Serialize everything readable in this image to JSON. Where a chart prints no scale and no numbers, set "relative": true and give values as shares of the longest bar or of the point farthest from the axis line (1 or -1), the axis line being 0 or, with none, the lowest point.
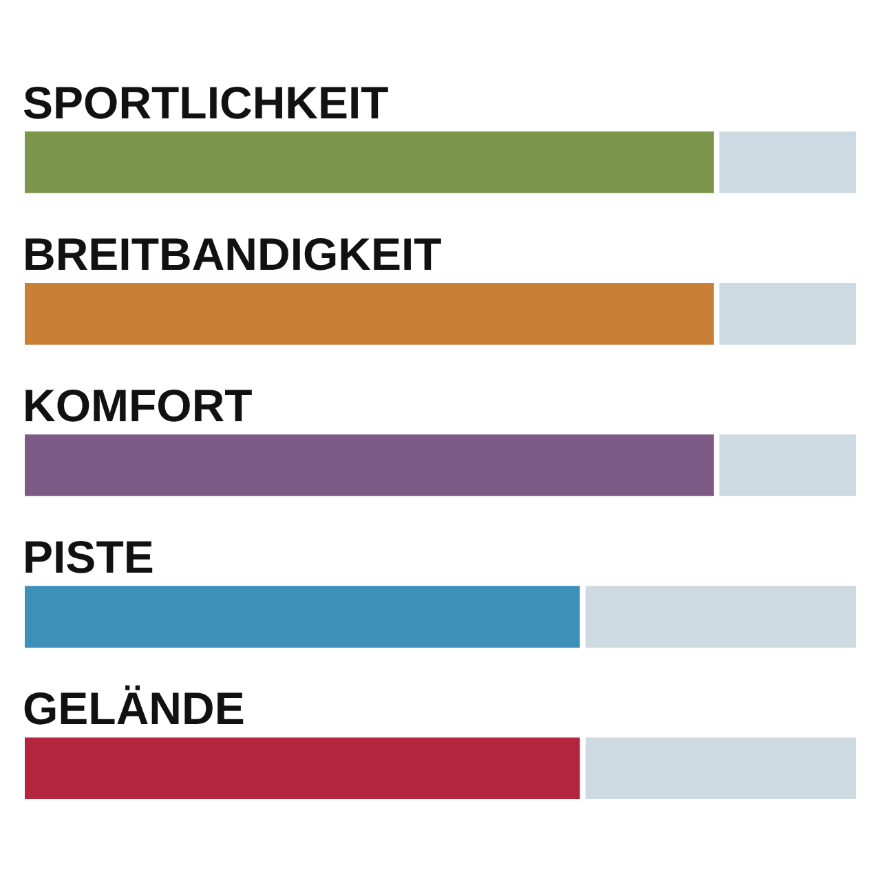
{
  "chart_data": {
    "type": "bar",
    "orientation": "horizontal",
    "stacked": true,
    "relative": true,
    "categories": [
      "SPORTLICHKEIT",
      "BREITBANDIGKEIT",
      "KOMFORT",
      "PISTE",
      "GELÄNDE"
    ],
    "series": [
      {
        "colors": [
          "#7b954c",
          "#c97f36",
          "#7e5b87",
          "#3d91b8",
          "#b3263e"
        ],
        "values": [
          0.83,
          0.83,
          0.83,
          0.67,
          0.67
        ]
      },
      {
        "color": "#cddae2",
        "values": [
          0.17,
          0.17,
          0.17,
          0.33,
          0.33
        ]
      }
    ]
  }
}
